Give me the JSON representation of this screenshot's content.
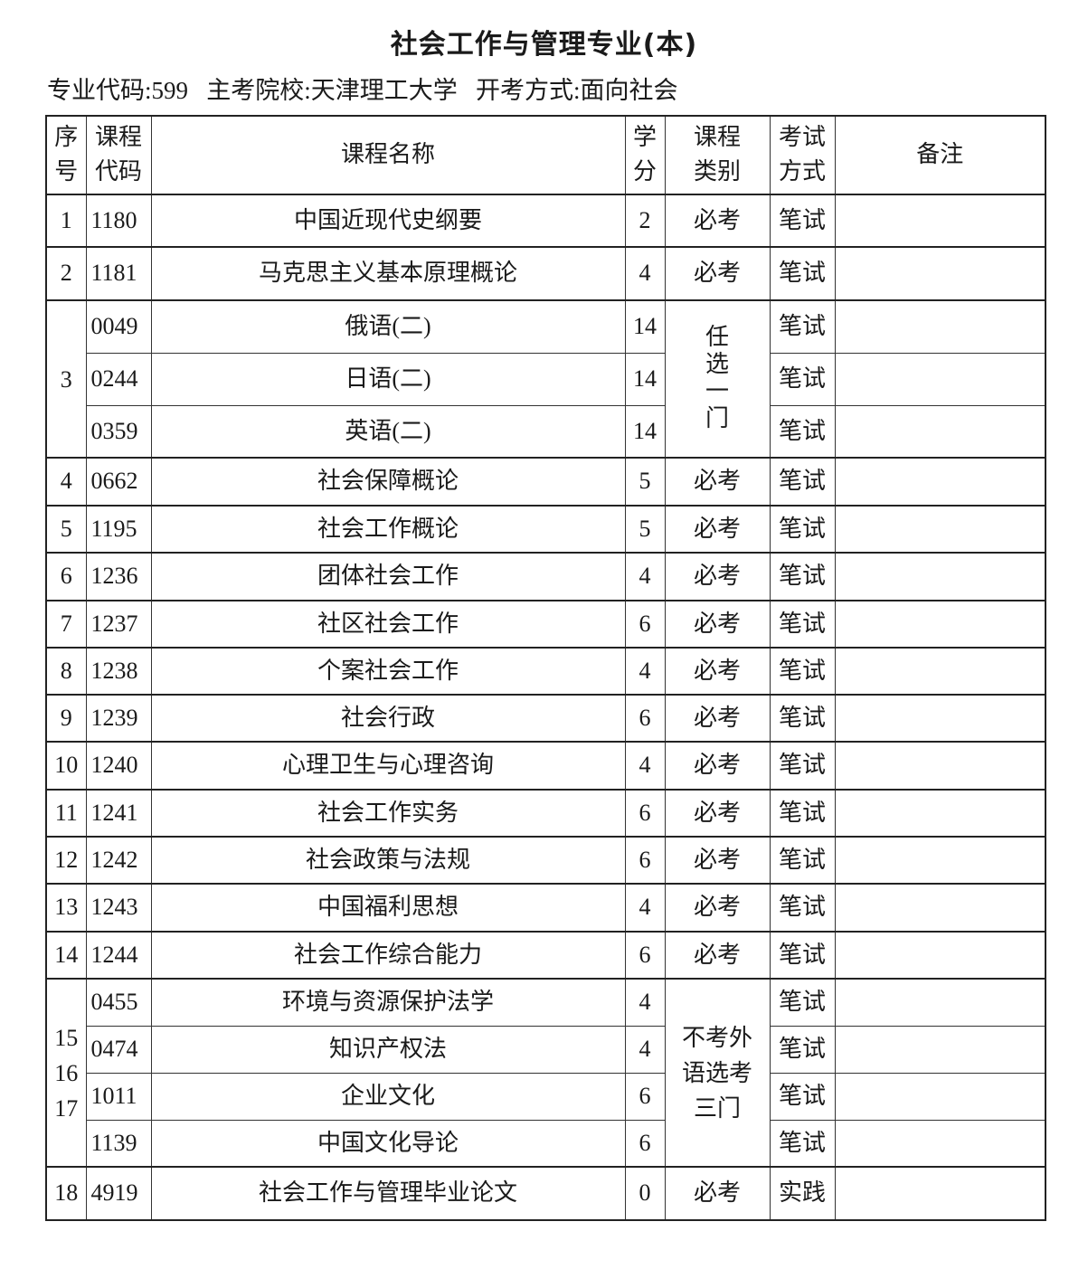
{
  "title": "社会工作与管理专业(本)",
  "info": {
    "major_code": "专业代码:599",
    "school": "主考院校:天津理工大学",
    "exam_mode": "开考方式:面向社会"
  },
  "headers": {
    "seq": "序号",
    "code": "课程代码",
    "name": "课程名称",
    "credits": "学分",
    "type": "课程类别",
    "exam": "考试方式",
    "remarks": "备注"
  },
  "groups": [
    {
      "seq": "1",
      "type": "必考",
      "courses": [
        {
          "code": "1180",
          "name": "中国近现代史纲要",
          "credits": "2",
          "exam": "笔试"
        }
      ]
    },
    {
      "seq": "2",
      "type": "必考",
      "courses": [
        {
          "code": "1181",
          "name": "马克思主义基本原理概论",
          "credits": "4",
          "exam": "笔试"
        }
      ]
    },
    {
      "seq": "3",
      "type": "任选一门",
      "courses": [
        {
          "code": "0049",
          "name": "俄语(二)",
          "credits": "14",
          "exam": "笔试"
        },
        {
          "code": "0244",
          "name": "日语(二)",
          "credits": "14",
          "exam": "笔试"
        },
        {
          "code": "0359",
          "name": "英语(二)",
          "credits": "14",
          "exam": "笔试"
        }
      ]
    },
    {
      "seq": "4",
      "type": "必考",
      "courses": [
        {
          "code": "0662",
          "name": "社会保障概论",
          "credits": "5",
          "exam": "笔试"
        }
      ]
    },
    {
      "seq": "5",
      "type": "必考",
      "courses": [
        {
          "code": "1195",
          "name": "社会工作概论",
          "credits": "5",
          "exam": "笔试"
        }
      ]
    },
    {
      "seq": "6",
      "type": "必考",
      "courses": [
        {
          "code": "1236",
          "name": "团体社会工作",
          "credits": "4",
          "exam": "笔试"
        }
      ]
    },
    {
      "seq": "7",
      "type": "必考",
      "courses": [
        {
          "code": "1237",
          "name": "社区社会工作",
          "credits": "6",
          "exam": "笔试"
        }
      ]
    },
    {
      "seq": "8",
      "type": "必考",
      "courses": [
        {
          "code": "1238",
          "name": "个案社会工作",
          "credits": "4",
          "exam": "笔试"
        }
      ]
    },
    {
      "seq": "9",
      "type": "必考",
      "courses": [
        {
          "code": "1239",
          "name": "社会行政",
          "credits": "6",
          "exam": "笔试"
        }
      ]
    },
    {
      "seq": "10",
      "type": "必考",
      "courses": [
        {
          "code": "1240",
          "name": "心理卫生与心理咨询",
          "credits": "4",
          "exam": "笔试"
        }
      ]
    },
    {
      "seq": "11",
      "type": "必考",
      "courses": [
        {
          "code": "1241",
          "name": "社会工作实务",
          "credits": "6",
          "exam": "笔试"
        }
      ]
    },
    {
      "seq": "12",
      "type": "必考",
      "courses": [
        {
          "code": "1242",
          "name": "社会政策与法规",
          "credits": "6",
          "exam": "笔试"
        }
      ]
    },
    {
      "seq": "13",
      "type": "必考",
      "courses": [
        {
          "code": "1243",
          "name": "中国福利思想",
          "credits": "4",
          "exam": "笔试"
        }
      ]
    },
    {
      "seq": "14",
      "type": "必考",
      "courses": [
        {
          "code": "1244",
          "name": "社会工作综合能力",
          "credits": "6",
          "exam": "笔试"
        }
      ]
    },
    {
      "seq": "15 16 17",
      "type": "不考外语选考三门",
      "courses": [
        {
          "code": "0455",
          "name": "环境与资源保护法学",
          "credits": "4",
          "exam": "笔试"
        },
        {
          "code": "0474",
          "name": "知识产权法",
          "credits": "4",
          "exam": "笔试"
        },
        {
          "code": "1011",
          "name": "企业文化",
          "credits": "6",
          "exam": "笔试"
        },
        {
          "code": "1139",
          "name": "中国文化导论",
          "credits": "6",
          "exam": "笔试"
        }
      ]
    },
    {
      "seq": "18",
      "type": "必考",
      "courses": [
        {
          "code": "4919",
          "name": "社会工作与管理毕业论文",
          "credits": "0",
          "exam": "实践"
        }
      ]
    }
  ]
}
